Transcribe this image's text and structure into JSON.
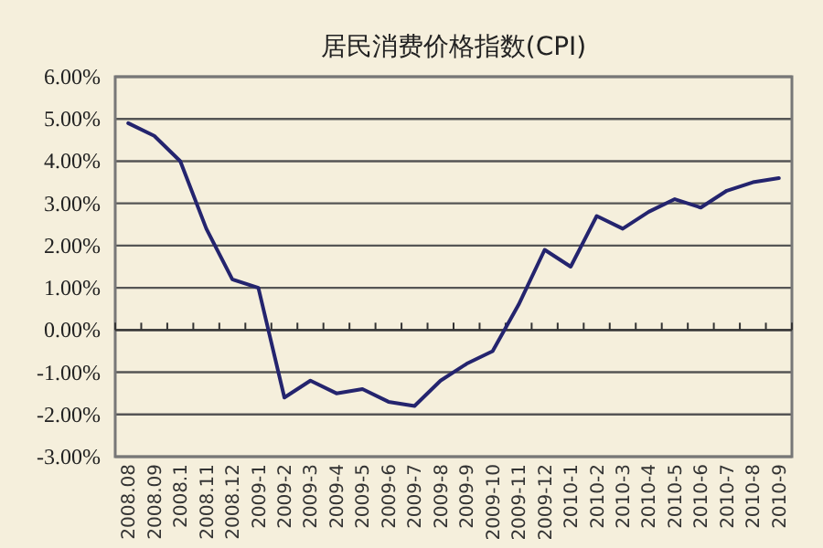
{
  "chart_data": {
    "type": "line",
    "title": "居民消费价格指数(CPI)",
    "categories": [
      "2008.08",
      "2008.09",
      "2008.1",
      "2008.11",
      "2008.12",
      "2009-1",
      "2009-2",
      "2009-3",
      "2009-4",
      "2009-5",
      "2009-6",
      "2009-7",
      "2009-8",
      "2009-9",
      "2009-10",
      "2009-11",
      "2009-12",
      "2010-1",
      "2010-2",
      "2010-3",
      "2010-4",
      "2010-5",
      "2010-6",
      "2010-7",
      "2010-8",
      "2010-9"
    ],
    "values": [
      4.9,
      4.6,
      4.0,
      2.4,
      1.2,
      1.0,
      -1.6,
      -1.2,
      -1.5,
      -1.4,
      -1.7,
      -1.8,
      -1.2,
      -0.8,
      -0.5,
      0.6,
      1.9,
      1.5,
      2.7,
      2.4,
      2.8,
      3.1,
      2.9,
      3.3,
      3.5,
      3.6
    ],
    "color": "#24246e",
    "ylim": [
      -3,
      6
    ],
    "yticks": [
      {
        "value": -3,
        "label": "-3.00%"
      },
      {
        "value": -2,
        "label": "-2.00%"
      },
      {
        "value": -1,
        "label": "-1.00%"
      },
      {
        "value": 0,
        "label": "0.00%"
      },
      {
        "value": 1,
        "label": "1.00%"
      },
      {
        "value": 2,
        "label": "2.00%"
      },
      {
        "value": 3,
        "label": "3.00%"
      },
      {
        "value": 4,
        "label": "4.00%"
      },
      {
        "value": 5,
        "label": "5.00%"
      },
      {
        "value": 6,
        "label": "6.00%"
      }
    ],
    "grid": "y"
  }
}
